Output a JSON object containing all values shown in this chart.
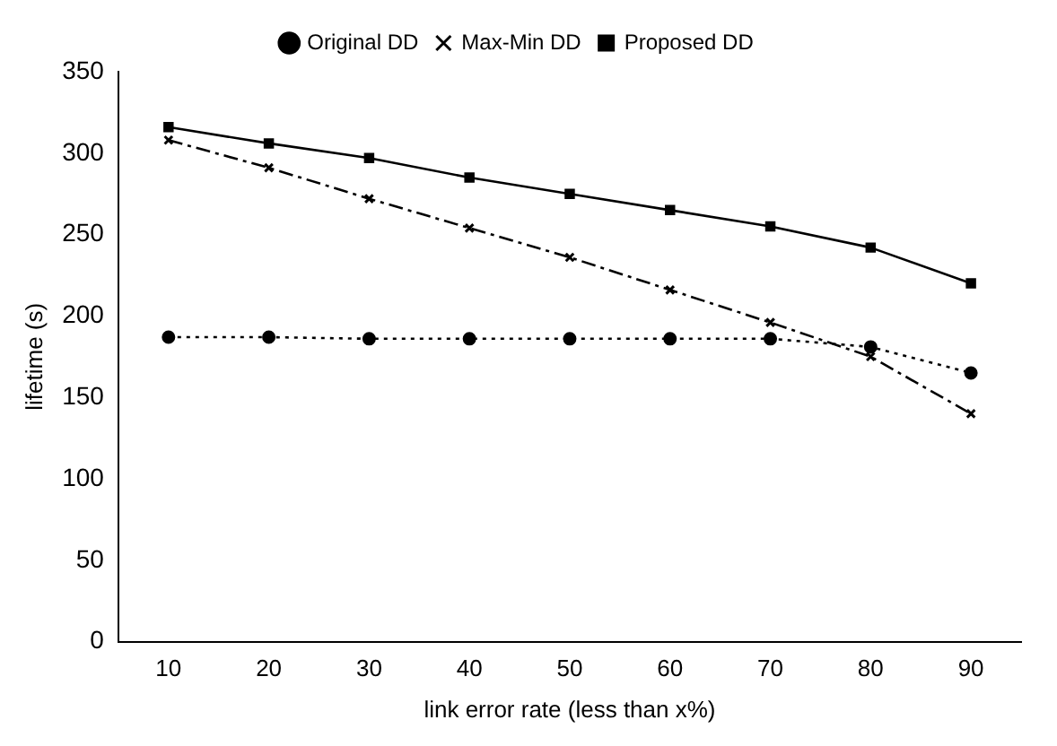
{
  "chart_data": {
    "type": "line",
    "xlabel": "link error rate (less than x%)",
    "ylabel": "lifetime (s)",
    "categories": [
      "10",
      "20",
      "30",
      "40",
      "50",
      "60",
      "70",
      "80",
      "90"
    ],
    "series": [
      {
        "name": "Original DD",
        "color": "#000000",
        "marker": "circle",
        "line_style": "dotted",
        "values": [
          187,
          187,
          186,
          186,
          186,
          186,
          186,
          181,
          165
        ]
      },
      {
        "name": "Max-Min DD",
        "color": "#000000",
        "marker": "cross",
        "line_style": "dashed",
        "values": [
          308,
          291,
          272,
          254,
          236,
          216,
          196,
          175,
          140
        ]
      },
      {
        "name": "Proposed DD",
        "color": "#000000",
        "marker": "square",
        "line_style": "solid",
        "values": [
          316,
          306,
          297,
          285,
          275,
          265,
          255,
          242,
          220
        ]
      }
    ],
    "ylim": [
      0,
      350
    ],
    "yticks": [
      0,
      50,
      100,
      150,
      200,
      250,
      300,
      350
    ],
    "grid": false,
    "legend": "top"
  }
}
